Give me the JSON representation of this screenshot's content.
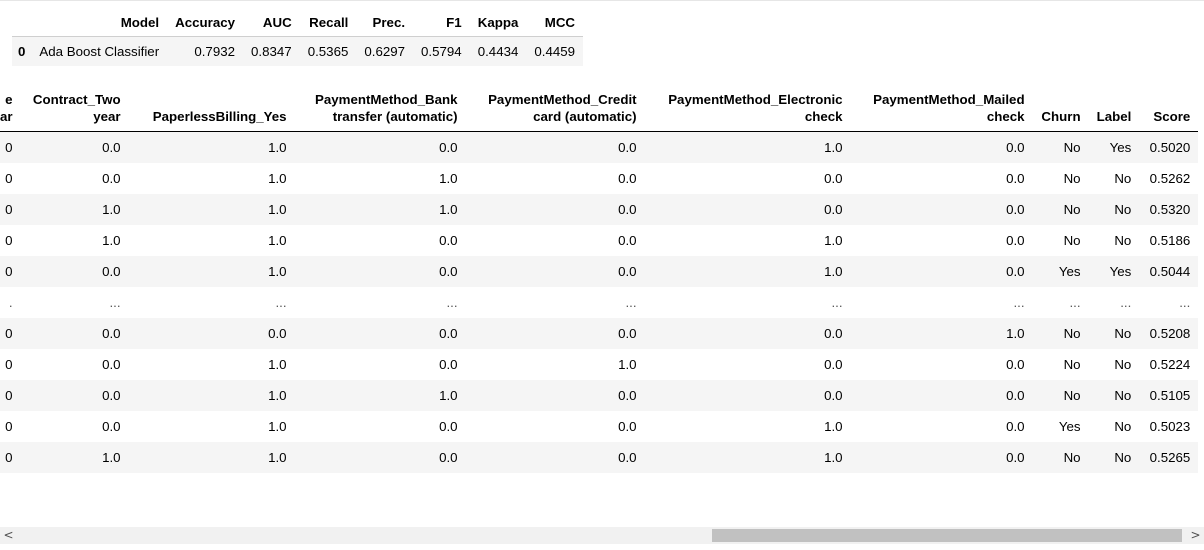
{
  "metrics_table": {
    "headers": [
      "",
      "Model",
      "Accuracy",
      "AUC",
      "Recall",
      "Prec.",
      "F1",
      "Kappa",
      "MCC"
    ],
    "rows": [
      [
        "0",
        "Ada Boost Classifier",
        "0.7932",
        "0.8347",
        "0.5365",
        "0.6297",
        "0.5794",
        "0.4434",
        "0.4459"
      ]
    ]
  },
  "predictions_table": {
    "headers": [
      "e\nar",
      "Contract_Two\nyear",
      "PaperlessBilling_Yes",
      "PaymentMethod_Bank\ntransfer (automatic)",
      "PaymentMethod_Credit\ncard (automatic)",
      "PaymentMethod_Electronic\ncheck",
      "PaymentMethod_Mailed\ncheck",
      "Churn",
      "Label",
      "Score"
    ],
    "rows": [
      [
        "0",
        "0.0",
        "1.0",
        "0.0",
        "0.0",
        "1.0",
        "0.0",
        "No",
        "Yes",
        "0.5020"
      ],
      [
        "0",
        "0.0",
        "1.0",
        "1.0",
        "0.0",
        "0.0",
        "0.0",
        "No",
        "No",
        "0.5262"
      ],
      [
        "0",
        "1.0",
        "1.0",
        "1.0",
        "0.0",
        "0.0",
        "0.0",
        "No",
        "No",
        "0.5320"
      ],
      [
        "0",
        "1.0",
        "1.0",
        "0.0",
        "0.0",
        "1.0",
        "0.0",
        "No",
        "No",
        "0.5186"
      ],
      [
        "0",
        "0.0",
        "1.0",
        "0.0",
        "0.0",
        "1.0",
        "0.0",
        "Yes",
        "Yes",
        "0.5044"
      ],
      [
        ".",
        "...",
        "...",
        "...",
        "...",
        "...",
        "...",
        "...",
        "...",
        "..."
      ],
      [
        "0",
        "0.0",
        "0.0",
        "0.0",
        "0.0",
        "0.0",
        "1.0",
        "No",
        "No",
        "0.5208"
      ],
      [
        "0",
        "0.0",
        "1.0",
        "0.0",
        "1.0",
        "0.0",
        "0.0",
        "No",
        "No",
        "0.5224"
      ],
      [
        "0",
        "0.0",
        "1.0",
        "1.0",
        "0.0",
        "0.0",
        "0.0",
        "No",
        "No",
        "0.5105"
      ],
      [
        "0",
        "0.0",
        "1.0",
        "0.0",
        "0.0",
        "1.0",
        "0.0",
        "Yes",
        "No",
        "0.5023"
      ],
      [
        "0",
        "1.0",
        "1.0",
        "0.0",
        "0.0",
        "1.0",
        "0.0",
        "No",
        "No",
        "0.5265"
      ]
    ],
    "ellipsis_row_index": 5
  },
  "scrollbar": {
    "left_arrow_icon": "chevron-left-icon",
    "right_arrow_icon": "chevron-right-icon",
    "left_arrow_glyph": "<",
    "right_arrow_glyph": ">",
    "scroll_position_fraction": 1.0
  },
  "colors": {
    "striped_row": "#f5f5f5",
    "header_rule": "#000000",
    "scrollbar_track": "#f1f1f1",
    "scrollbar_thumb": "#c1c1c1"
  }
}
